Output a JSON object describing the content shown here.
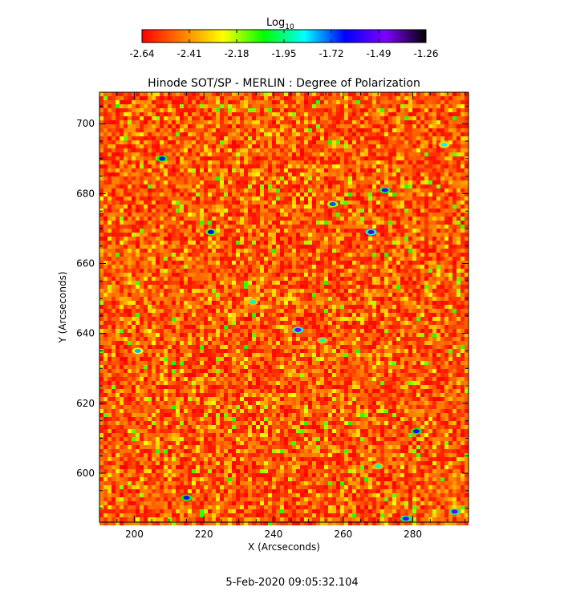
{
  "chart_data": {
    "type": "heatmap",
    "title": "Hinode SOT/SP - MERLIN : Degree of Polarization",
    "xlabel": "X (Arcseconds)",
    "ylabel": "Y (Arcseconds)",
    "xlim": [
      190,
      296
    ],
    "ylim": [
      586,
      709
    ],
    "xticks": [
      200,
      220,
      240,
      260,
      280
    ],
    "yticks": [
      600,
      620,
      640,
      660,
      680,
      700
    ],
    "colorbar": {
      "label_base": "Log",
      "label_sub": "10",
      "range": [
        -2.64,
        -1.26
      ],
      "ticks": [
        "-2.64",
        "-2.41",
        "-2.18",
        "-1.95",
        "-1.72",
        "-1.49",
        "-1.26"
      ],
      "colors": [
        "#ff0000",
        "#ff8000",
        "#ffff00",
        "#00ff00",
        "#00ffff",
        "#0000ff",
        "#8000ff",
        "#000000"
      ]
    },
    "footer": "5-Feb-2020 09:05:32.104",
    "features": [
      {
        "x": 208,
        "y": 690,
        "value": -1.6
      },
      {
        "x": 257,
        "y": 677,
        "value": -1.72
      },
      {
        "x": 268,
        "y": 669,
        "value": -1.4
      },
      {
        "x": 272,
        "y": 681,
        "value": -1.55
      },
      {
        "x": 222,
        "y": 669,
        "value": -1.65
      },
      {
        "x": 247,
        "y": 641,
        "value": -1.45
      },
      {
        "x": 234,
        "y": 649,
        "value": -1.9
      },
      {
        "x": 289,
        "y": 694,
        "value": -1.85
      },
      {
        "x": 281,
        "y": 612,
        "value": -1.6
      },
      {
        "x": 215,
        "y": 593,
        "value": -1.6
      },
      {
        "x": 278,
        "y": 587,
        "value": -1.5
      },
      {
        "x": 292,
        "y": 589,
        "value": -1.5
      },
      {
        "x": 201,
        "y": 635,
        "value": -1.8
      },
      {
        "x": 270,
        "y": 602,
        "value": -1.9
      },
      {
        "x": 254,
        "y": 638,
        "value": -1.9
      }
    ]
  }
}
